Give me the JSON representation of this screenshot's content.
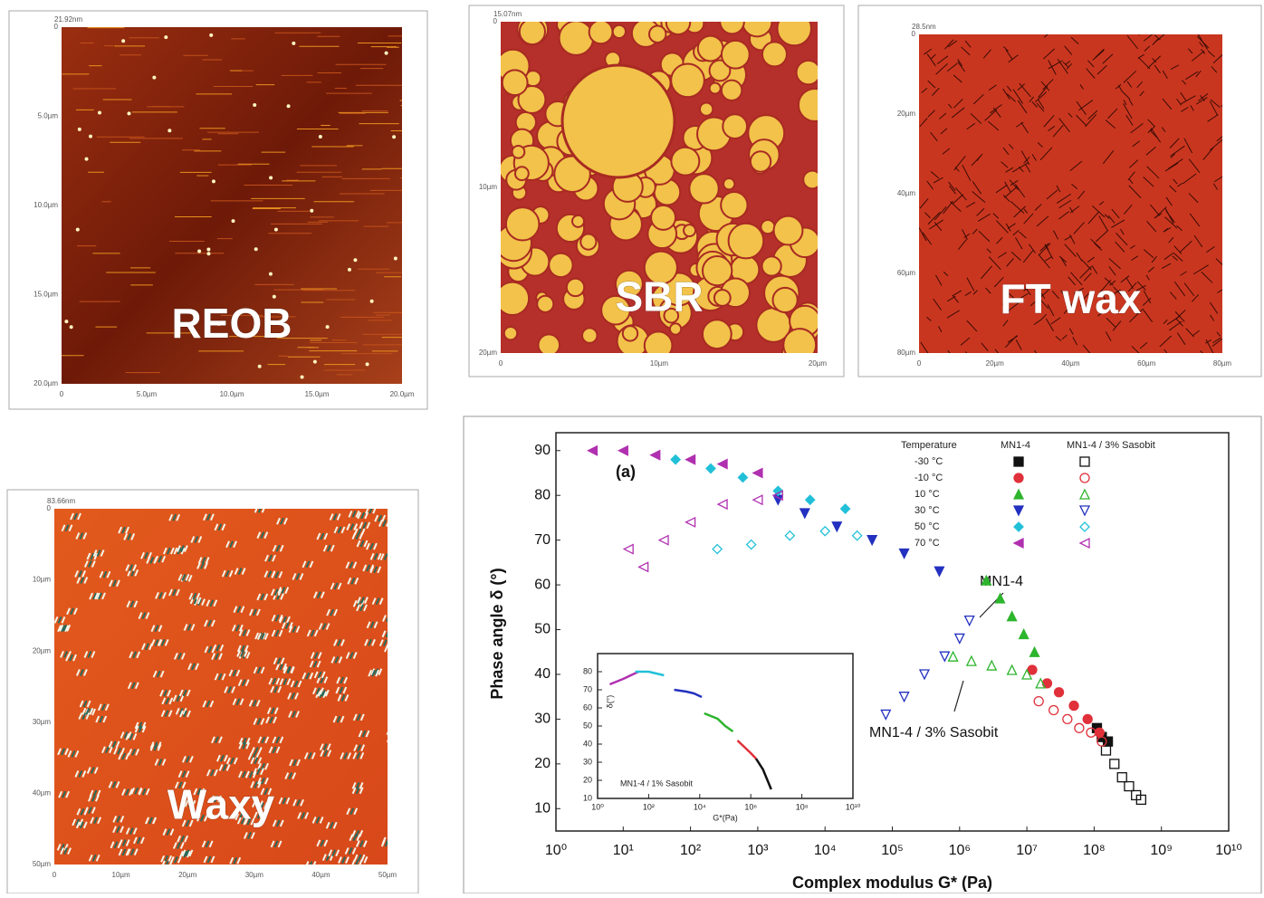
{
  "images": [
    {
      "label": "REOB",
      "scale": "21.92nm",
      "xticks": [
        "0",
        "5.0µm",
        "10.0µm",
        "15.0µm",
        "20.0µm"
      ],
      "yticks": [
        "0",
        "5.0µm",
        "10.0µm",
        "15.0µm",
        "20.0µm"
      ]
    },
    {
      "label": "SBR",
      "scale": "15.07nm",
      "xticks": [
        "0",
        "10µm",
        "20µm"
      ],
      "yticks": [
        "0",
        "10µm",
        "20µm"
      ]
    },
    {
      "label": "FT wax",
      "scale": "28.5nm",
      "xticks": [
        "0",
        "20µm",
        "40µm",
        "60µm",
        "80µm"
      ],
      "yticks": [
        "0",
        "20µm",
        "40µm",
        "60µm",
        "80µm"
      ]
    },
    {
      "label": "Waxy",
      "scale": "83.66nm",
      "xticks": [
        "0",
        "10µm",
        "20µm",
        "30µm",
        "40µm",
        "50µm"
      ],
      "yticks": [
        "0",
        "10µm",
        "20µm",
        "30µm",
        "40µm",
        "50µm"
      ]
    }
  ],
  "chart_data": [
    {
      "type": "scatter",
      "x_label": "Complex modulus G* (Pa)",
      "y_label": "Phase angle δ (°)",
      "xscale": "log",
      "xlim": [
        1,
        10000000000
      ],
      "ylim": [
        5,
        94
      ],
      "xticks": [
        {
          "value": 1,
          "label": "10⁰"
        },
        {
          "value": 10,
          "label": "10¹"
        },
        {
          "value": 100,
          "label": "10²"
        },
        {
          "value": 1000,
          "label": "10³"
        },
        {
          "value": 10000,
          "label": "10⁴"
        },
        {
          "value": 100000,
          "label": "10⁵"
        },
        {
          "value": 1000000,
          "label": "10⁶"
        },
        {
          "value": 10000000,
          "label": "10⁷"
        },
        {
          "value": 100000000,
          "label": "10⁸"
        },
        {
          "value": 1000000000,
          "label": "10⁹"
        },
        {
          "value": 10000000000,
          "label": "10¹⁰"
        }
      ],
      "yticks": [
        10,
        20,
        30,
        40,
        50,
        60,
        70,
        80,
        90
      ],
      "annotations": [
        "(a)",
        "MN1-4",
        "MN1-4 / 3% Sasobit"
      ],
      "legend_title": "Temperature",
      "series_groups": [
        {
          "name": "MN1-4",
          "filled": true,
          "series": [
            {
              "name": "-30 °C",
              "color": "#111111",
              "marker": "square",
              "x": [
                110000000,
                130000000,
                160000000
              ],
              "values": [
                28,
                26,
                25
              ]
            },
            {
              "name": "-10 °C",
              "color": "#e0303a",
              "marker": "circle",
              "x": [
                12000000,
                20000000,
                30000000,
                50000000,
                80000000,
                120000000
              ],
              "values": [
                41,
                38,
                36,
                33,
                30,
                27
              ]
            },
            {
              "name": "10 °C",
              "color": "#2db52d",
              "marker": "triangle-up",
              "x": [
                2500000,
                4000000,
                6000000,
                9000000,
                13000000
              ],
              "values": [
                61,
                57,
                53,
                49,
                45
              ]
            },
            {
              "name": "30 °C",
              "color": "#2330c0",
              "marker": "triangle-down",
              "x": [
                2000,
                5000,
                15000,
                50000,
                150000,
                500000
              ],
              "values": [
                79,
                76,
                73,
                70,
                67,
                63
              ]
            },
            {
              "name": "50 °C",
              "color": "#22c0d8",
              "marker": "diamond",
              "x": [
                60,
                200,
                600,
                2000,
                6000,
                20000
              ],
              "values": [
                88,
                86,
                84,
                81,
                79,
                77
              ]
            },
            {
              "name": "70 °C",
              "color": "#b030b0",
              "marker": "triangle-left",
              "x": [
                3.5,
                10,
                30,
                100,
                300,
                1000
              ],
              "values": [
                90,
                90,
                89,
                88,
                87,
                85
              ]
            }
          ]
        },
        {
          "name": "MN1-4 / 3% Sasobit",
          "filled": false,
          "series": [
            {
              "color": "#111111",
              "marker": "square",
              "x": [
                150000000,
                200000000,
                260000000,
                330000000,
                420000000,
                500000000
              ],
              "values": [
                23,
                20,
                17,
                15,
                13,
                12
              ]
            },
            {
              "color": "#e0303a",
              "marker": "circle",
              "x": [
                15000000,
                25000000,
                40000000,
                60000000,
                90000000,
                130000000
              ],
              "values": [
                34,
                32,
                30,
                28,
                27,
                25
              ]
            },
            {
              "color": "#2db52d",
              "marker": "triangle-up",
              "x": [
                800000,
                1500000,
                3000000,
                6000000,
                10000000,
                16000000
              ],
              "values": [
                44,
                43,
                42,
                41,
                40,
                38
              ]
            },
            {
              "color": "#2330c0",
              "marker": "triangle-down",
              "x": [
                80000,
                150000,
                300000,
                600000,
                1000000,
                1400000
              ],
              "values": [
                31,
                35,
                40,
                44,
                48,
                52
              ]
            },
            {
              "color": "#22c0d8",
              "marker": "diamond",
              "x": [
                250,
                800,
                3000,
                10000,
                30000
              ],
              "values": [
                68,
                69,
                71,
                72,
                71
              ]
            },
            {
              "color": "#b030b0",
              "marker": "triangle-left",
              "x": [
                12,
                20,
                40,
                100,
                300,
                1000,
                2000
              ],
              "values": [
                68,
                64,
                70,
                74,
                78,
                79,
                80
              ]
            }
          ]
        }
      ]
    },
    {
      "type": "line",
      "x_label": "G*(Pa)",
      "y_label": "δ(°)",
      "xscale": "log",
      "annotation": "MN1-4 / 1% Sasobit",
      "xlim": [
        1,
        10000000000
      ],
      "ylim": [
        10,
        90
      ],
      "xticks": [
        {
          "value": 1,
          "label": "10⁰"
        },
        {
          "value": 100,
          "label": "10²"
        },
        {
          "value": 10000,
          "label": "10⁴"
        },
        {
          "value": 1000000,
          "label": "10⁶"
        },
        {
          "value": 100000000,
          "label": "10⁸"
        },
        {
          "value": 10000000000,
          "label": "10¹⁰"
        }
      ],
      "yticks": [
        10,
        20,
        30,
        40,
        50,
        60,
        70,
        80
      ],
      "series": [
        {
          "color": "#b030b0",
          "x": [
            3,
            10,
            20,
            40
          ],
          "values": [
            73,
            76,
            78,
            80
          ]
        },
        {
          "color": "#22c0d8",
          "x": [
            30,
            100,
            200,
            400
          ],
          "values": [
            80,
            80,
            79,
            78
          ]
        },
        {
          "color": "#2330c0",
          "x": [
            1000,
            3000,
            6000,
            12000
          ],
          "values": [
            70,
            69,
            68,
            66
          ]
        },
        {
          "color": "#2db52d",
          "x": [
            15000,
            50000,
            100000,
            200000
          ],
          "values": [
            57,
            54,
            50,
            47
          ]
        },
        {
          "color": "#e0303a",
          "x": [
            300000,
            600000,
            1000000,
            1600000
          ],
          "values": [
            42,
            38,
            35,
            32
          ]
        },
        {
          "color": "#111111",
          "x": [
            1600000,
            3000000,
            4500000,
            6300000
          ],
          "values": [
            32,
            26,
            20,
            15
          ]
        }
      ]
    }
  ]
}
